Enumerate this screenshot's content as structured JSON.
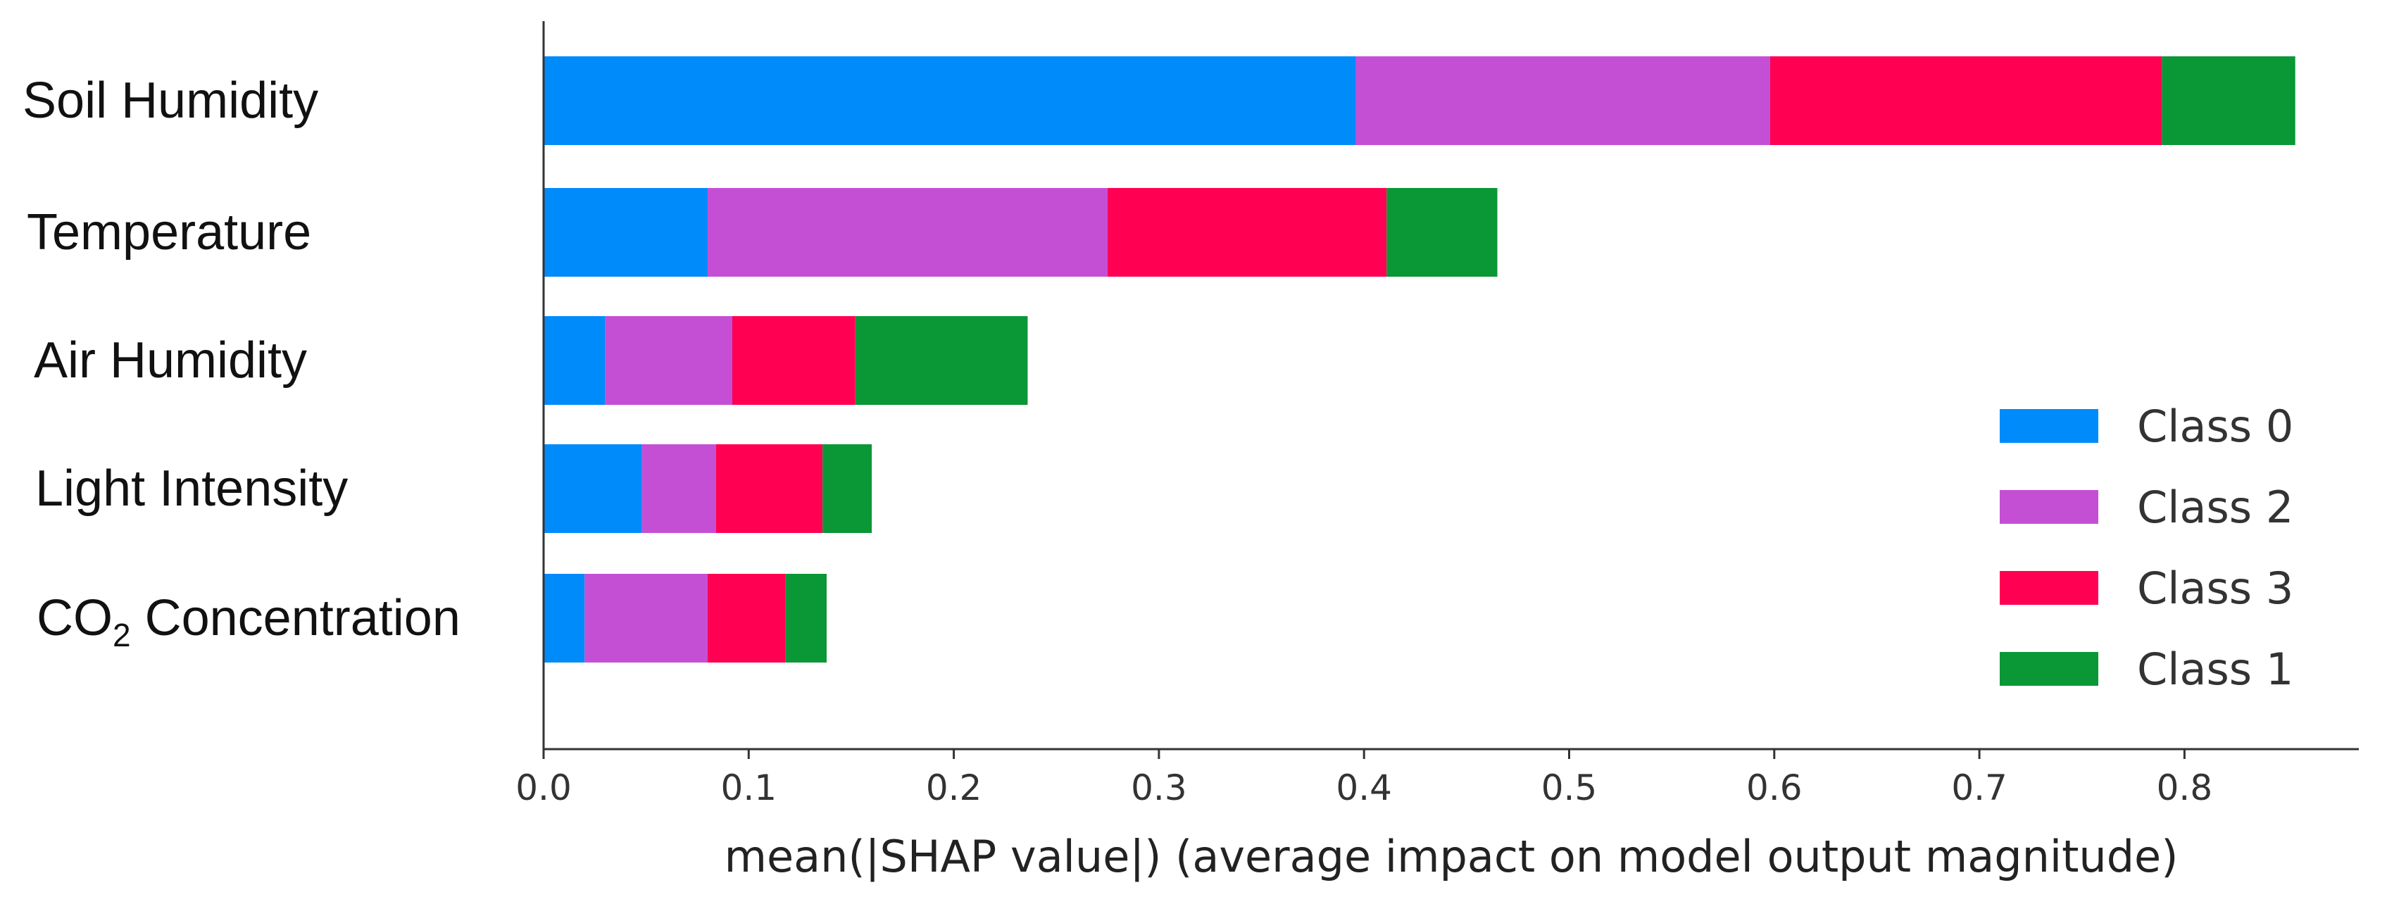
{
  "chart_data": {
    "type": "bar",
    "orientation": "horizontal",
    "stacked": true,
    "categories": [
      "Soil Humidity",
      "Temperature",
      "Air Humidity",
      "Light Intensity",
      "CO2 Concentration"
    ],
    "category_labels": [
      {
        "text": "Soil Humidity",
        "sub": ""
      },
      {
        "text": "Temperature",
        "sub": ""
      },
      {
        "text": "Air Humidity",
        "sub": ""
      },
      {
        "text": "Light Intensity",
        "sub": ""
      },
      {
        "text": "CO",
        "sub": "2",
        "rest": " Concentration"
      }
    ],
    "series": [
      {
        "name": "Class 0",
        "color": "#008bfb",
        "values": [
          0.396,
          0.08,
          0.03,
          0.048,
          0.02
        ]
      },
      {
        "name": "Class 2",
        "color": "#c54fd4",
        "values": [
          0.202,
          0.195,
          0.062,
          0.036,
          0.06
        ]
      },
      {
        "name": "Class 3",
        "color": "#ff0052",
        "values": [
          0.191,
          0.136,
          0.06,
          0.052,
          0.038
        ]
      },
      {
        "name": "Class 1",
        "color": "#0a9736",
        "values": [
          0.065,
          0.054,
          0.084,
          0.024,
          0.02
        ]
      }
    ],
    "legend_order": [
      "Class 0",
      "Class 2",
      "Class 3",
      "Class 1"
    ],
    "legend_position": "right",
    "xlim": [
      0,
      0.885
    ],
    "xticks": [
      0.0,
      0.1,
      0.2,
      0.3,
      0.4,
      0.5,
      0.6,
      0.7,
      0.8
    ],
    "xtick_labels": [
      "0.0",
      "0.1",
      "0.2",
      "0.3",
      "0.4",
      "0.5",
      "0.6",
      "0.7",
      "0.8"
    ],
    "xlabel": "mean(|SHAP value|) (average impact on model output magnitude)",
    "ylabel": "",
    "title": "",
    "grid": false
  }
}
